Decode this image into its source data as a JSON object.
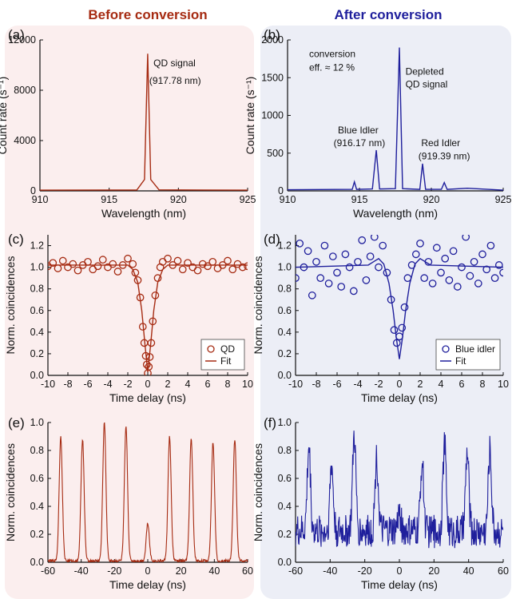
{
  "columns": {
    "left": {
      "title": "Before conversion",
      "color": "#a62b12",
      "bg": "#fbeeee"
    },
    "right": {
      "title": "After conversion",
      "color": "#1f1f9c",
      "bg": "#eceef6"
    }
  },
  "chart_data": [
    {
      "id": "a",
      "panel_label": "(a)",
      "type": "line",
      "column": "left",
      "xlabel": "Wavelength (nm)",
      "ylabel": "Count rate (s⁻¹)",
      "xlim": [
        910,
        925
      ],
      "ylim": [
        0,
        12000
      ],
      "xticks": [
        910,
        915,
        920,
        925
      ],
      "yticks": [
        0,
        4000,
        8000,
        12000
      ],
      "series": [
        {
          "kind": "line",
          "values": {
            "x": [
              910,
              917.0,
              917.55,
              917.78,
              918.0,
              918.6,
              925
            ],
            "y": [
              60,
              70,
              900,
              10900,
              900,
              80,
              60
            ]
          }
        }
      ],
      "annotations": [
        {
          "text": "QD signal",
          "x": 918.2,
          "y": 9900
        },
        {
          "text": "(917.78 nm)",
          "x": 917.9,
          "y": 8500
        }
      ]
    },
    {
      "id": "b",
      "panel_label": "(b)",
      "type": "line",
      "column": "right",
      "xlabel": "Wavelength (nm)",
      "ylabel": "Count rate (s⁻¹)",
      "xlim": [
        910,
        925
      ],
      "ylim": [
        0,
        2000
      ],
      "xticks": [
        910,
        915,
        920,
        925
      ],
      "yticks": [
        0,
        500,
        1000,
        1500,
        2000
      ],
      "series": [
        {
          "kind": "line",
          "values": {
            "x": [
              910,
              914.5,
              914.65,
              914.8,
              915.9,
              916.17,
              916.4,
              917.5,
              917.78,
              918.0,
              919.2,
              919.39,
              919.6,
              920.7,
              920.9,
              921.1,
              922.5,
              925
            ],
            "y": [
              15,
              20,
              120,
              20,
              25,
              540,
              25,
              30,
              1900,
              30,
              20,
              360,
              20,
              20,
              110,
              20,
              35,
              10
            ]
          }
        }
      ],
      "annotations": [
        {
          "text": "conversion",
          "x": 911.5,
          "y": 1770
        },
        {
          "text": "eff. ≈ 12 %",
          "x": 911.5,
          "y": 1590
        },
        {
          "text": "Depleted",
          "x": 918.2,
          "y": 1540
        },
        {
          "text": "QD signal",
          "x": 918.2,
          "y": 1370
        },
        {
          "text": "Blue Idler",
          "x": 913.5,
          "y": 760
        },
        {
          "text": "(916.17 nm)",
          "x": 913.2,
          "y": 590
        },
        {
          "text": "Red Idler",
          "x": 919.3,
          "y": 590
        },
        {
          "text": "(919.39 nm)",
          "x": 919.1,
          "y": 420
        }
      ]
    },
    {
      "id": "c",
      "panel_label": "(c)",
      "type": "scatter",
      "column": "left",
      "xlabel": "Time delay (ns)",
      "ylabel": "Norm. coincidences",
      "xlim": [
        -10,
        10
      ],
      "ylim": [
        0,
        1.3
      ],
      "xticks": [
        -10,
        -8,
        -6,
        -4,
        -2,
        0,
        2,
        4,
        6,
        8,
        10
      ],
      "yticks": [
        0,
        0.2,
        0.4,
        0.6,
        0.8,
        1.0,
        1.2
      ],
      "series": [
        {
          "name": "QD",
          "kind": "points",
          "values": {
            "x": [
              -10,
              -9.5,
              -9,
              -8.5,
              -8,
              -7.5,
              -7,
              -6.5,
              -6,
              -5.5,
              -5,
              -4.5,
              -4,
              -3.5,
              -3,
              -2.5,
              -2,
              -1.5,
              -1.25,
              -1,
              -0.75,
              -0.5,
              -0.35,
              -0.2,
              -0.1,
              0,
              0.1,
              0.2,
              0.35,
              0.5,
              0.75,
              1,
              1.25,
              1.5,
              2,
              2.5,
              3,
              3.5,
              4,
              4.5,
              5,
              5.5,
              6,
              6.5,
              7,
              7.5,
              8,
              8.5,
              9,
              9.5,
              10
            ],
            "y": [
              1.01,
              1.04,
              0.99,
              1.06,
              1.0,
              1.03,
              0.97,
              1.02,
              1.05,
              0.98,
              1.01,
              1.07,
              1.0,
              1.03,
              0.96,
              1.02,
              1.08,
              1.03,
              0.95,
              0.88,
              0.72,
              0.45,
              0.3,
              0.18,
              0.1,
              0.02,
              0.08,
              0.17,
              0.3,
              0.5,
              0.74,
              0.9,
              1.0,
              1.05,
              1.08,
              1.02,
              1.06,
              0.98,
              1.04,
              1.0,
              0.97,
              1.03,
              1.01,
              1.05,
              0.99,
              1.02,
              1.06,
              0.98,
              1.03,
              1.0,
              1.01
            ]
          }
        },
        {
          "name": "Fit",
          "kind": "line",
          "values": {
            "x": [
              -10,
              -2,
              -1.5,
              -1,
              -0.6,
              -0.3,
              0,
              0.3,
              0.6,
              1,
              1.5,
              2,
              10
            ],
            "y": [
              1.02,
              1.02,
              0.98,
              0.86,
              0.6,
              0.3,
              0.03,
              0.3,
              0.6,
              0.86,
              0.98,
              1.02,
              1.02
            ]
          }
        }
      ]
    },
    {
      "id": "d",
      "panel_label": "(d)",
      "type": "scatter",
      "column": "right",
      "xlabel": "Time delay (ns)",
      "ylabel": "Norm. coincidences",
      "xlim": [
        -10,
        10
      ],
      "ylim": [
        0,
        1.3
      ],
      "xticks": [
        -10,
        -8,
        -6,
        -4,
        -2,
        0,
        2,
        4,
        6,
        8,
        10
      ],
      "yticks": [
        0,
        0.2,
        0.4,
        0.6,
        0.8,
        1.0,
        1.2
      ],
      "series": [
        {
          "name": "Blue idler",
          "kind": "points",
          "values": {
            "x": [
              -10,
              -9.6,
              -9.2,
              -8.8,
              -8.4,
              -8,
              -7.6,
              -7.2,
              -6.8,
              -6.4,
              -6,
              -5.6,
              -5.2,
              -4.8,
              -4.4,
              -4,
              -3.6,
              -3.2,
              -2.8,
              -2.4,
              -2,
              -1.6,
              -1.2,
              -0.8,
              -0.5,
              -0.25,
              0,
              0.25,
              0.5,
              0.8,
              1.2,
              1.6,
              2,
              2.4,
              2.8,
              3.2,
              3.6,
              4,
              4.4,
              4.8,
              5.2,
              5.6,
              6,
              6.4,
              6.8,
              7.2,
              7.6,
              8,
              8.4,
              8.8,
              9.2,
              9.6,
              10
            ],
            "y": [
              0.9,
              1.22,
              1.0,
              1.15,
              0.74,
              1.05,
              0.9,
              1.2,
              0.85,
              1.1,
              0.95,
              0.82,
              1.12,
              1.0,
              0.78,
              1.05,
              1.25,
              0.88,
              1.1,
              1.28,
              1.0,
              1.2,
              0.95,
              0.7,
              0.42,
              0.3,
              0.36,
              0.44,
              0.63,
              0.9,
              1.02,
              1.12,
              1.22,
              0.9,
              1.05,
              0.85,
              1.18,
              0.95,
              1.08,
              0.88,
              1.15,
              0.82,
              1.0,
              1.28,
              0.92,
              1.05,
              0.85,
              1.12,
              0.98,
              1.2,
              0.9,
              1.02,
              0.95
            ]
          }
        },
        {
          "name": "Fit",
          "kind": "line",
          "values": {
            "x": [
              -10,
              -3,
              -2.5,
              -2,
              -1.5,
              -1,
              -0.6,
              -0.3,
              0,
              0.3,
              0.6,
              1,
              1.5,
              2,
              2.5,
              3,
              10
            ],
            "y": [
              1.0,
              1.02,
              1.05,
              1.08,
              1.03,
              0.85,
              0.6,
              0.35,
              0.15,
              0.35,
              0.6,
              0.85,
              1.03,
              1.08,
              1.05,
              1.02,
              1.0
            ]
          }
        }
      ]
    },
    {
      "id": "e",
      "panel_label": "(e)",
      "type": "line",
      "column": "left",
      "xlabel": "Time delay (ns)",
      "ylabel": "Norm. coincidences",
      "xlim": [
        -60,
        60
      ],
      "ylim": [
        0,
        1.0
      ],
      "xticks": [
        -60,
        -40,
        -20,
        0,
        20,
        40,
        60
      ],
      "yticks": [
        0,
        0.2,
        0.4,
        0.6,
        0.8,
        1.0
      ],
      "series": [
        {
          "kind": "line",
          "peaks": {
            "centers": [
              -52.3,
              -39.2,
              -26.1,
              -13.1,
              0,
              13.1,
              26.1,
              39.2,
              52.3
            ],
            "heights": [
              0.9,
              0.88,
              1.0,
              0.97,
              0.28,
              0.9,
              0.88,
              0.86,
              0.88
            ]
          },
          "baseline": 0.01,
          "noise": 0.01
        }
      ]
    },
    {
      "id": "f",
      "panel_label": "(f)",
      "type": "line",
      "column": "right",
      "xlabel": "Time delay (ns)",
      "ylabel": "Norm. coincidences",
      "xlim": [
        -60,
        60
      ],
      "ylim": [
        0,
        1.0
      ],
      "xticks": [
        -60,
        -40,
        -20,
        0,
        20,
        40,
        60
      ],
      "yticks": [
        0,
        0.2,
        0.4,
        0.6,
        0.8,
        1.0
      ],
      "series": [
        {
          "kind": "line",
          "peaks": {
            "centers": [
              -52.3,
              -39.2,
              -26.1,
              -13.1,
              0,
              13.1,
              26.1,
              39.2,
              52.3
            ],
            "heights": [
              0.82,
              0.7,
              0.9,
              0.75,
              0.35,
              0.72,
              0.85,
              0.78,
              0.8
            ]
          },
          "baseline": 0.22,
          "noise": 0.12
        }
      ]
    }
  ]
}
